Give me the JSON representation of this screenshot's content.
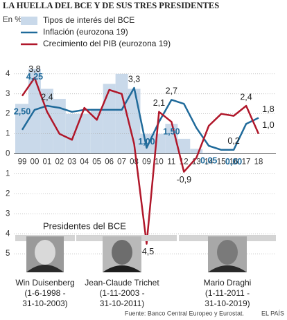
{
  "chart_data": {
    "type": "line",
    "title": "LA HUELLA DEL BCE Y DE SUS TRES PRESIDENTES",
    "y_label": "En %",
    "categories": [
      "99",
      "00",
      "01",
      "02",
      "03",
      "04",
      "05",
      "06",
      "07",
      "08",
      "09",
      "10",
      "11",
      "12",
      "13",
      "14",
      "15",
      "16",
      "17",
      "18"
    ],
    "ylim": [
      -5.2,
      5.1
    ],
    "yticks": [
      {
        "value": -5,
        "label": "5"
      },
      {
        "value": -4,
        "label": "4"
      },
      {
        "value": -3,
        "label": "3"
      },
      {
        "value": -2,
        "label": "2"
      },
      {
        "value": -1,
        "label": "1"
      },
      0,
      1,
      2,
      3,
      4
    ],
    "grid": true,
    "series": [
      {
        "name": "Tipos de interés del BCE",
        "type": "area",
        "color": "#c9d9ea",
        "values": [
          2.5,
          4.25,
          3.25,
          2.75,
          2.0,
          2.0,
          2.25,
          3.5,
          4.0,
          3.25,
          1.0,
          1.0,
          1.5,
          0.75,
          0.25,
          0.05,
          0.05,
          0.0,
          0.0,
          0.0
        ],
        "value_labels": [
          "2,50",
          "4,25",
          null,
          null,
          null,
          null,
          null,
          null,
          null,
          null,
          "1,00",
          null,
          "1,50",
          null,
          null,
          "0,05",
          null,
          "0,00",
          null,
          null
        ]
      },
      {
        "name": "Inflación (eurozona 19)",
        "type": "line",
        "color": "#1f6a9a",
        "values": [
          1.2,
          2.2,
          2.4,
          2.3,
          2.1,
          2.2,
          2.2,
          2.2,
          2.2,
          3.3,
          0.3,
          1.6,
          2.7,
          2.5,
          1.3,
          0.4,
          0.2,
          0.2,
          1.5,
          1.8
        ],
        "value_labels": [
          null,
          null,
          "2,4",
          null,
          null,
          null,
          null,
          null,
          null,
          "3,3",
          null,
          null,
          "2,7",
          null,
          null,
          null,
          null,
          "0,2",
          null,
          "1,8"
        ]
      },
      {
        "name": "Crecimiento del PIB (eurozona 19)",
        "type": "line",
        "color": "#b0172a",
        "values": [
          2.9,
          3.8,
          2.1,
          1.0,
          0.7,
          2.3,
          1.7,
          3.2,
          3.0,
          0.5,
          -4.5,
          2.1,
          1.6,
          -0.9,
          -0.2,
          1.4,
          2.0,
          1.9,
          2.4,
          1.0
        ],
        "value_labels": [
          null,
          "3,8",
          null,
          null,
          null,
          null,
          null,
          null,
          null,
          null,
          "-4,5",
          "2,1",
          null,
          "-0,9",
          null,
          null,
          null,
          null,
          "2,4",
          "1,0"
        ]
      }
    ]
  },
  "presidents": {
    "title": "Presidentes del BCE",
    "items": [
      {
        "name": "Win Duisenberg",
        "lines": [
          "(1-6-1998 -",
          "31-10-2003)"
        ]
      },
      {
        "name": "Jean-Claude Trichet",
        "lines": [
          "(1-11-2003 -",
          "31-10-2011)"
        ]
      },
      {
        "name": "Mario Draghi",
        "lines": [
          "(1-11-2011 -",
          "31-10-2019)"
        ]
      }
    ]
  },
  "footer": {
    "source": "Fuente: Banco Central Europeo y Eurostat.",
    "brand": "EL PAÍS"
  }
}
